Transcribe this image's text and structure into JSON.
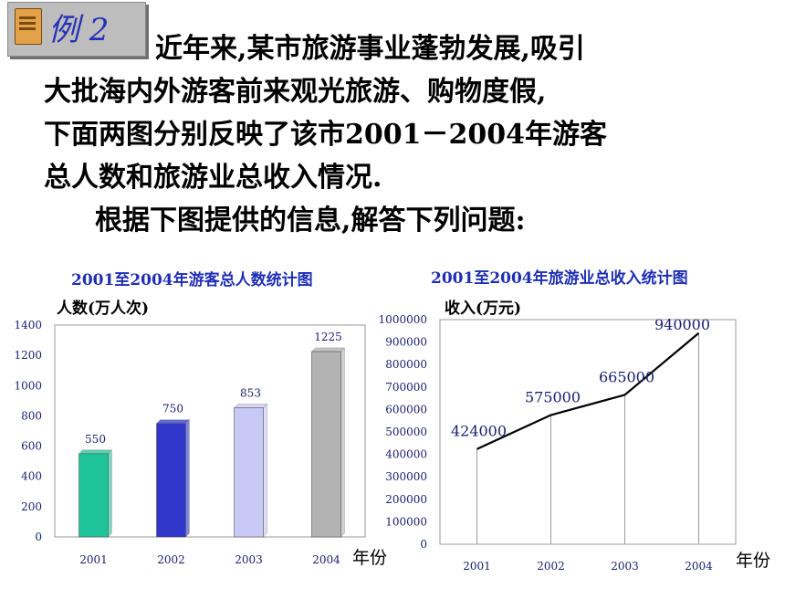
{
  "badge": {
    "label": "例 2"
  },
  "intro": {
    "lines": [
      "近年来,某市旅游事业蓬勃发展,吸引",
      "大批海内外游客前来观光旅游、购物度假,",
      "下面两图分别反映了该市2001－2004年游客",
      "总人数和旅游业总收入情况.",
      "根据下图提供的信息,解答下列问题:"
    ]
  },
  "chart_data": [
    {
      "type": "bar",
      "title": "2001至2004年游客总人数统计图",
      "ylabel": "人数(万人次)",
      "xlabel": "年份",
      "categories": [
        "2001",
        "2002",
        "2003",
        "2004"
      ],
      "values": [
        550,
        750,
        853,
        1225
      ],
      "ylim": [
        0,
        1400
      ],
      "yticks": [
        0,
        200,
        400,
        600,
        800,
        1000,
        1200,
        1400
      ],
      "bar_colors": [
        "#1fc39a",
        "#2f36c9",
        "#c8caf5",
        "#b3b3b3"
      ],
      "grid": false,
      "data_labels": true
    },
    {
      "type": "line",
      "title": "2001至2004年旅游业总收入统计图",
      "ylabel": "收入(万元)",
      "xlabel": "年份",
      "categories": [
        "2001",
        "2002",
        "2003",
        "2004"
      ],
      "values": [
        424000,
        575000,
        665000,
        940000
      ],
      "ylim": [
        0,
        1000000
      ],
      "yticks": [
        0,
        100000,
        200000,
        300000,
        400000,
        500000,
        600000,
        700000,
        800000,
        900000,
        1000000
      ],
      "line_color": "#000000",
      "grid": false,
      "drop_lines": true,
      "data_labels": true
    }
  ]
}
